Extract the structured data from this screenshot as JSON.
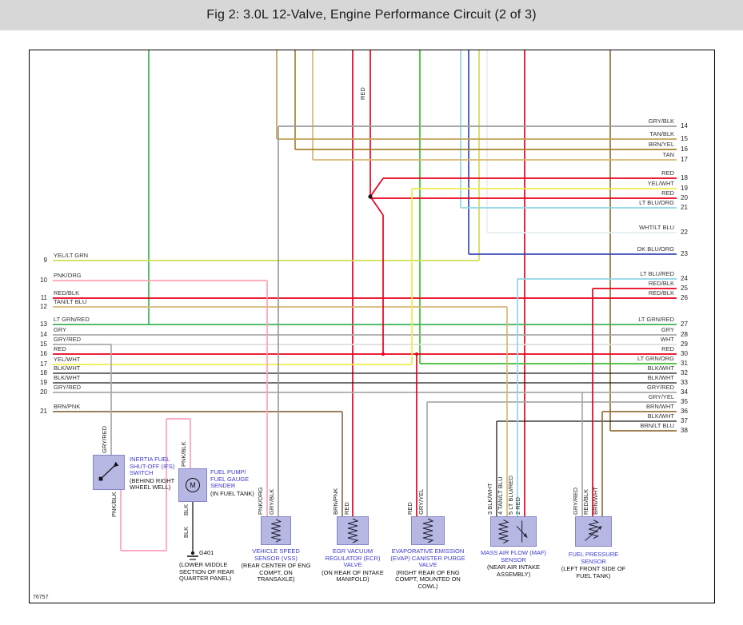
{
  "title": "Fig 2: 3.0L 12-Valve, Engine Performance Circuit (2 of 3)",
  "diagram_number": "76757",
  "top_wire_label": "RED",
  "header_bg": "#d7d7d7",
  "component_label_color": "#3a3acc",
  "component_box_fill": "#b7b7e3",
  "component_box_border": "#8585c5",
  "left_pins": [
    {
      "pin": "9",
      "label": "YEL/LT GRN"
    },
    {
      "pin": "10",
      "label": "PNK/ORG"
    },
    {
      "pin": "11",
      "label": "RED/BLK"
    },
    {
      "pin": "12",
      "label": "TAN/LT BLU"
    },
    {
      "pin": "13",
      "label": "LT GRN/RED"
    },
    {
      "pin": "14",
      "label": "GRY"
    },
    {
      "pin": "15",
      "label": "GRY/RED"
    },
    {
      "pin": "16",
      "label": "RED"
    },
    {
      "pin": "17",
      "label": "YEL/WHT"
    },
    {
      "pin": "18",
      "label": "BLK/WHT"
    },
    {
      "pin": "19",
      "label": "BLK/WHT"
    },
    {
      "pin": "20",
      "label": "GRY/RED"
    },
    {
      "pin": "21",
      "label": "BRN/PNK"
    }
  ],
  "right_pins": [
    {
      "pin": "14",
      "label": "GRY/BLK"
    },
    {
      "pin": "15",
      "label": "TAN/BLK"
    },
    {
      "pin": "16",
      "label": "BRN/YEL"
    },
    {
      "pin": "17",
      "label": "TAN"
    },
    {
      "pin": "18",
      "label": "RED"
    },
    {
      "pin": "19",
      "label": "YEL/WHT"
    },
    {
      "pin": "20",
      "label": "RED"
    },
    {
      "pin": "21",
      "label": "LT BLU/ORG"
    },
    {
      "pin": "22",
      "label": "WHT/LT BLU"
    },
    {
      "pin": "23",
      "label": "DK BLU/ORG"
    },
    {
      "pin": "24",
      "label": "LT BLU/RED"
    },
    {
      "pin": "25",
      "label": "RED/BLK"
    },
    {
      "pin": "26",
      "label": "RED/BLK"
    },
    {
      "pin": "27",
      "label": "LT GRN/RED"
    },
    {
      "pin": "28",
      "label": "GRY"
    },
    {
      "pin": "29",
      "label": "WHT"
    },
    {
      "pin": "30",
      "label": "RED"
    },
    {
      "pin": "31",
      "label": "LT GRN/ORG"
    },
    {
      "pin": "32",
      "label": "BLK/WHT"
    },
    {
      "pin": "33",
      "label": "BLK/WHT"
    },
    {
      "pin": "34",
      "label": "GRY/RED"
    },
    {
      "pin": "35",
      "label": "GRY/YEL"
    },
    {
      "pin": "36",
      "label": "BRN/WHT"
    },
    {
      "pin": "37",
      "label": "BLK/WHT"
    },
    {
      "pin": "38",
      "label": "BRN/LT BLU"
    }
  ],
  "components": [
    {
      "name": "INERTIA FUEL SHUT-OFF (IFS) SWITCH",
      "location": "(BEHIND RIGHT WHEEL WELL)",
      "wires": [
        "GRY/RED",
        "PNK/BLK"
      ]
    },
    {
      "name": "FUEL PUMP/ FUEL GAUGE SENDER",
      "location": "(IN FUEL TANK)",
      "symbol": "M",
      "wires": [
        "PNK/BLK",
        "BLK"
      ]
    },
    {
      "name": "G401",
      "location": "(LOWER MIDDLE SECTION OF REAR QUARTER PANEL)",
      "wires": [
        "BLK"
      ]
    },
    {
      "name": "VEHICLE SPEED SENSOR (VSS)",
      "location": "(REAR CENTER OF ENG COMPT, ON TRANSAXLE)",
      "wires": [
        "PNK/ORG",
        "GRY/BLK"
      ]
    },
    {
      "name": "EGR VACUUM REGULATOR (ECR) VALVE",
      "location": "(ON REAR OF INTAKE MANIFOLD)",
      "wires": [
        "BRN/PNK",
        "RED"
      ]
    },
    {
      "name": "EVAPORATIVE EMISSION (EVAP) CANISTER PURGE VALVE",
      "location": "(RIGHT REAR OF ENG COMPT, MOUNTED ON COWL)",
      "wires": [
        "RED",
        "GRY/YEL"
      ]
    },
    {
      "name": "MASS AIR FLOW (MAF) SENSOR",
      "location": "(NEAR AIR INTAKE ASSEMBLY)",
      "wires": [
        "3 BLK/WHT",
        "4 TAN/LT BLU",
        "5 LT BLU/RED",
        "2 RED"
      ]
    },
    {
      "name": "FUEL PRESSURE SENSOR",
      "location": "(LEFT FRONT SIDE OF FUEL TANK)",
      "wires": [
        "GRY/RED",
        "RED/BLK",
        "BRN/WHT"
      ]
    }
  ],
  "wire_colors": {
    "RED": "#e8001c",
    "RED/BLK": "#e8001c",
    "PNK/BLK": "#ff9fc0",
    "PNK/ORG": "#ffa3b3",
    "TAN": "#d8b774",
    "TAN/BLK": "#c3a258",
    "TAN/LT BLU": "#d8b774",
    "BRN/YEL": "#a6812e",
    "BRN/WHT": "#96703c",
    "BRN/LT BLU": "#96703c",
    "BRN/PNK": "#8d6e46",
    "GRY": "#a9a9a9",
    "GRY/BLK": "#9b9b9b",
    "GRY/RED": "#a9a9a9",
    "GRY/YEL": "#a9a9a9",
    "WHT": "#dedede",
    "WHT/LT BLU": "#e6eef3",
    "YEL/WHT": "#f0eb4e",
    "YEL/LT GRN": "#cfdd55",
    "LT GRN/RED": "#3bb254",
    "LT GRN/ORG": "#3fbc33",
    "LT BLU/ORG": "#90d6e6",
    "LT BLU/RED": "#90d6e6",
    "DK BLU/ORG": "#3a4ab8",
    "BLK": "#1a1a1a",
    "BLK/WHT": "#1a1a1a"
  }
}
